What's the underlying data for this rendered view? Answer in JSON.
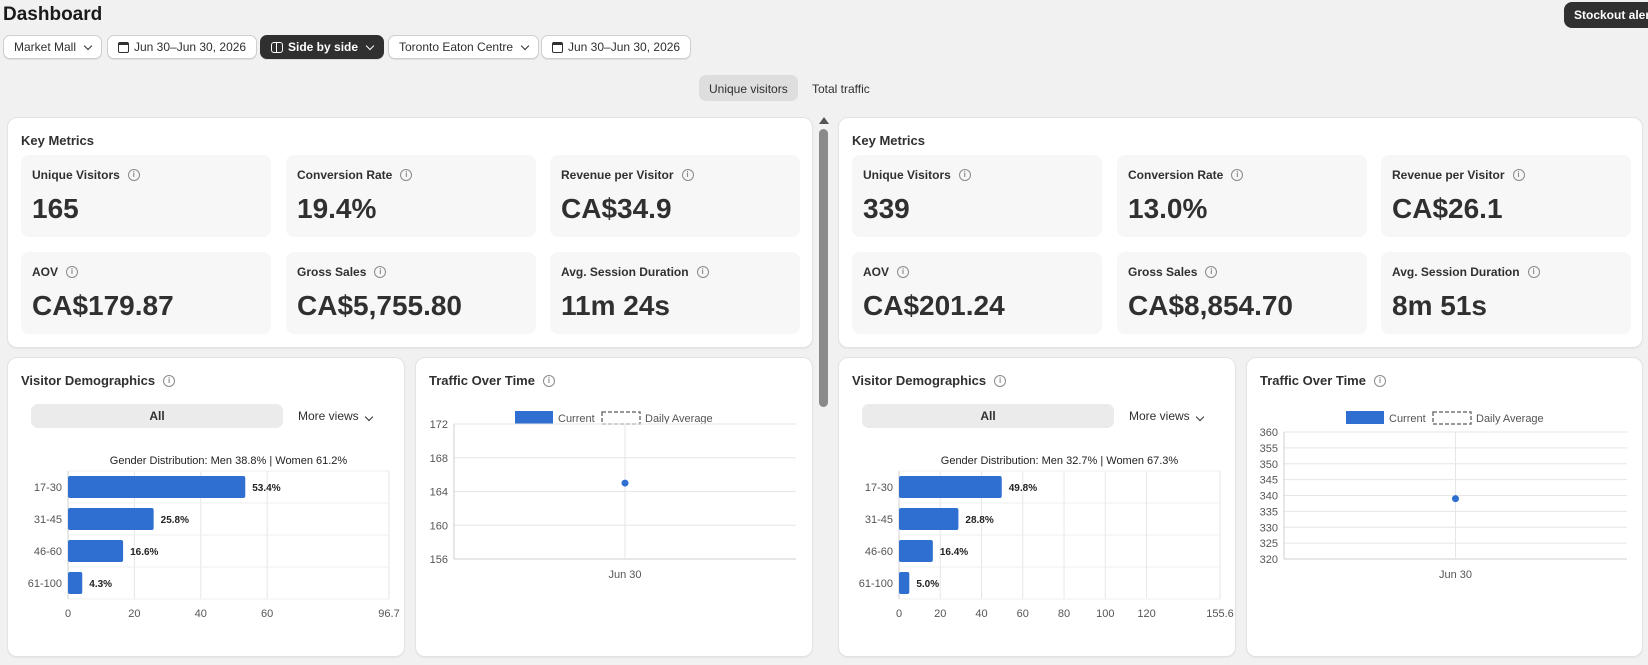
{
  "page": {
    "title": "Dashboard",
    "alert_button": "Stockout alerts"
  },
  "filters": {
    "store_a": "Market Mall",
    "date_a": "Jun 30–Jun 30, 2026",
    "compare_mode": "Side by side",
    "store_b": "Toronto Eaton Centre",
    "date_b": "Jun 30–Jun 30, 2026"
  },
  "view_toggle": {
    "unique": "Unique visitors",
    "total": "Total traffic",
    "active": "unique"
  },
  "colors": {
    "bar": "#2e6fd1",
    "accent_dark": "#303030"
  },
  "left": {
    "key_metrics": {
      "title": "Key Metrics",
      "metrics": [
        {
          "label": "Unique Visitors",
          "value": "165"
        },
        {
          "label": "Conversion Rate",
          "value": "19.4%"
        },
        {
          "label": "Revenue per Visitor",
          "value": "CA$34.9"
        },
        {
          "label": "AOV",
          "value": "CA$179.87"
        },
        {
          "label": "Gross Sales",
          "value": "CA$5,755.80"
        },
        {
          "label": "Avg. Session Duration",
          "value": "11m 24s"
        }
      ]
    },
    "demographics": {
      "title": "Visitor Demographics",
      "segment": "All",
      "more_views": "More views",
      "chart_data": {
        "type": "bar",
        "orientation": "horizontal",
        "title": "Gender Distribution: Men 38.8% | Women 61.2%",
        "categories": [
          "17-30",
          "31-45",
          "46-60",
          "61-100"
        ],
        "values": [
          53.4,
          25.8,
          16.6,
          4.3
        ],
        "data_labels": [
          "53.4%",
          "25.8%",
          "16.6%",
          "4.3%"
        ],
        "xlim": [
          0,
          96.7
        ],
        "xticks": [
          "0",
          "20",
          "40",
          "60",
          "96.7"
        ],
        "xtick_values": [
          0,
          20,
          40,
          60,
          96.7
        ],
        "grid": true
      }
    },
    "traffic": {
      "title": "Traffic Over Time",
      "chart_data": {
        "type": "line",
        "legend": [
          "Current",
          "Daily Average"
        ],
        "legend_position": "top-center",
        "x": [
          "Jun 30"
        ],
        "series": [
          {
            "name": "Current",
            "values": [
              165
            ]
          }
        ],
        "ylim": [
          156,
          172
        ],
        "yticks": [
          156,
          160,
          164,
          168,
          172
        ],
        "grid": true
      }
    }
  },
  "right": {
    "key_metrics": {
      "title": "Key Metrics",
      "metrics": [
        {
          "label": "Unique Visitors",
          "value": "339"
        },
        {
          "label": "Conversion Rate",
          "value": "13.0%"
        },
        {
          "label": "Revenue per Visitor",
          "value": "CA$26.1"
        },
        {
          "label": "AOV",
          "value": "CA$201.24"
        },
        {
          "label": "Gross Sales",
          "value": "CA$8,854.70"
        },
        {
          "label": "Avg. Session Duration",
          "value": "8m 51s"
        }
      ]
    },
    "demographics": {
      "title": "Visitor Demographics",
      "segment": "All",
      "more_views": "More views",
      "chart_data": {
        "type": "bar",
        "orientation": "horizontal",
        "title": "Gender Distribution: Men 32.7% | Women 67.3%",
        "categories": [
          "17-30",
          "31-45",
          "46-60",
          "61-100"
        ],
        "values": [
          49.8,
          28.8,
          16.4,
          5.0
        ],
        "data_labels": [
          "49.8%",
          "28.8%",
          "16.4%",
          "5.0%"
        ],
        "xlim": [
          0,
          155.6
        ],
        "xticks": [
          "0",
          "20",
          "40",
          "60",
          "80",
          "100",
          "120",
          "155.6"
        ],
        "xtick_values": [
          0,
          20,
          40,
          60,
          80,
          100,
          120,
          155.6
        ],
        "grid": true
      }
    },
    "traffic": {
      "title": "Traffic Over Time",
      "chart_data": {
        "type": "line",
        "legend": [
          "Current",
          "Daily Average"
        ],
        "legend_position": "top-center",
        "x": [
          "Jun 30"
        ],
        "series": [
          {
            "name": "Current",
            "values": [
              339
            ]
          }
        ],
        "ylim": [
          320,
          360
        ],
        "yticks": [
          320,
          325,
          330,
          335,
          340,
          345,
          350,
          355,
          360
        ],
        "grid": true
      }
    }
  }
}
